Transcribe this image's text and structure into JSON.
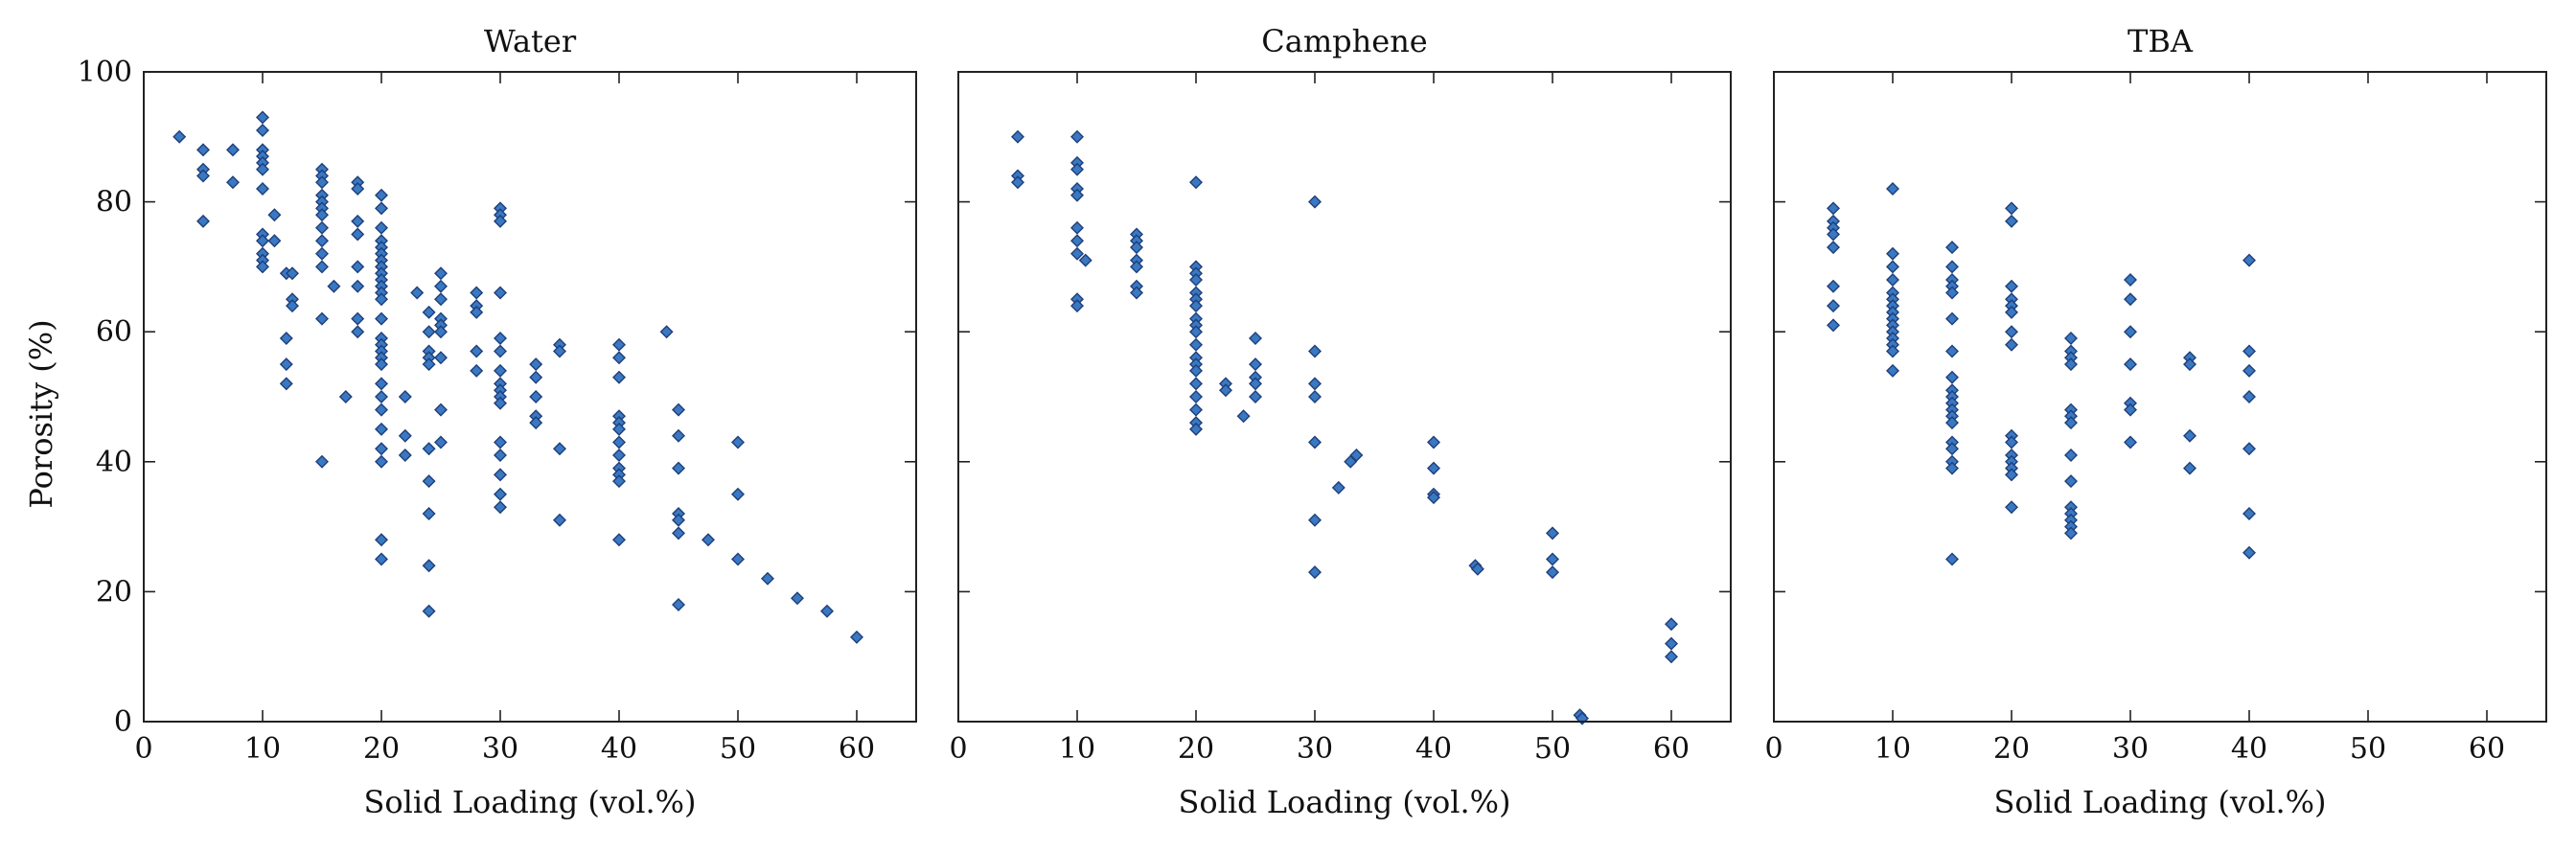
{
  "chart_data": {
    "type": "scatter",
    "ylabel": "Porosity (%)",
    "xlabel": "Solid Loading (vol.%)",
    "xlim": [
      0,
      65
    ],
    "ylim": [
      0,
      100
    ],
    "x_ticks": [
      0,
      10,
      20,
      30,
      40,
      50,
      60
    ],
    "y_ticks": [
      0,
      20,
      40,
      60,
      80,
      100
    ],
    "grid": false,
    "marker_color": "#3a78c2",
    "marker_edge_color": "#1e3f7a",
    "panels": [
      {
        "title": "Water",
        "points": [
          [
            3,
            90
          ],
          [
            5,
            88
          ],
          [
            5,
            85
          ],
          [
            5,
            84
          ],
          [
            5,
            77
          ],
          [
            7.5,
            88
          ],
          [
            7.5,
            83
          ],
          [
            10,
            93
          ],
          [
            10,
            91
          ],
          [
            10,
            88
          ],
          [
            10,
            87
          ],
          [
            10,
            86
          ],
          [
            10,
            85
          ],
          [
            10,
            82
          ],
          [
            10,
            75
          ],
          [
            10,
            74
          ],
          [
            10,
            72
          ],
          [
            10,
            71
          ],
          [
            10,
            70
          ],
          [
            11,
            78
          ],
          [
            11,
            74
          ],
          [
            12,
            69
          ],
          [
            12,
            59
          ],
          [
            12,
            55
          ],
          [
            12,
            52
          ],
          [
            12.5,
            69
          ],
          [
            12.5,
            65
          ],
          [
            12.5,
            64
          ],
          [
            15,
            85
          ],
          [
            15,
            84
          ],
          [
            15,
            83
          ],
          [
            15,
            81
          ],
          [
            15,
            80
          ],
          [
            15,
            79
          ],
          [
            15,
            78
          ],
          [
            15,
            76
          ],
          [
            15,
            74
          ],
          [
            15,
            72
          ],
          [
            15,
            70
          ],
          [
            15,
            62
          ],
          [
            15,
            40
          ],
          [
            16,
            67
          ],
          [
            17,
            50
          ],
          [
            18,
            83
          ],
          [
            18,
            82
          ],
          [
            18,
            77
          ],
          [
            18,
            75
          ],
          [
            18,
            70
          ],
          [
            18,
            67
          ],
          [
            18,
            62
          ],
          [
            18,
            60
          ],
          [
            20,
            81
          ],
          [
            20,
            79
          ],
          [
            20,
            76
          ],
          [
            20,
            74
          ],
          [
            20,
            73
          ],
          [
            20,
            72
          ],
          [
            20,
            71
          ],
          [
            20,
            70
          ],
          [
            20,
            69
          ],
          [
            20,
            68
          ],
          [
            20,
            67
          ],
          [
            20,
            66
          ],
          [
            20,
            65
          ],
          [
            20,
            62
          ],
          [
            20,
            59
          ],
          [
            20,
            58
          ],
          [
            20,
            57
          ],
          [
            20,
            56
          ],
          [
            20,
            55
          ],
          [
            20,
            52
          ],
          [
            20,
            50
          ],
          [
            20,
            48
          ],
          [
            20,
            45
          ],
          [
            20,
            42
          ],
          [
            20,
            40
          ],
          [
            20,
            28
          ],
          [
            20,
            25
          ],
          [
            22,
            50
          ],
          [
            22,
            44
          ],
          [
            22,
            41
          ],
          [
            23,
            66
          ],
          [
            24,
            63
          ],
          [
            24,
            60
          ],
          [
            24,
            57
          ],
          [
            24,
            56
          ],
          [
            24,
            55
          ],
          [
            24,
            42
          ],
          [
            24,
            37
          ],
          [
            24,
            32
          ],
          [
            24,
            24
          ],
          [
            24,
            17
          ],
          [
            25,
            69
          ],
          [
            25,
            67
          ],
          [
            25,
            65
          ],
          [
            25,
            62
          ],
          [
            25,
            61
          ],
          [
            25,
            60
          ],
          [
            25,
            56
          ],
          [
            25,
            48
          ],
          [
            25,
            43
          ],
          [
            28,
            66
          ],
          [
            28,
            64
          ],
          [
            28,
            63
          ],
          [
            28,
            57
          ],
          [
            28,
            54
          ],
          [
            30,
            79
          ],
          [
            30,
            78
          ],
          [
            30,
            77
          ],
          [
            30,
            66
          ],
          [
            30,
            59
          ],
          [
            30,
            57
          ],
          [
            30,
            54
          ],
          [
            30,
            52
          ],
          [
            30,
            51
          ],
          [
            30,
            50
          ],
          [
            30,
            49
          ],
          [
            30,
            43
          ],
          [
            30,
            41
          ],
          [
            30,
            38
          ],
          [
            30,
            35
          ],
          [
            30,
            33
          ],
          [
            33,
            55
          ],
          [
            33,
            53
          ],
          [
            33,
            50
          ],
          [
            33,
            47
          ],
          [
            33,
            46
          ],
          [
            35,
            58
          ],
          [
            35,
            57
          ],
          [
            35,
            42
          ],
          [
            35,
            31
          ],
          [
            40,
            58
          ],
          [
            40,
            56
          ],
          [
            40,
            53
          ],
          [
            40,
            47
          ],
          [
            40,
            46
          ],
          [
            40,
            45
          ],
          [
            40,
            43
          ],
          [
            40,
            41
          ],
          [
            40,
            39
          ],
          [
            40,
            38
          ],
          [
            40,
            37
          ],
          [
            40,
            28
          ],
          [
            44,
            60
          ],
          [
            45,
            48
          ],
          [
            45,
            44
          ],
          [
            45,
            39
          ],
          [
            45,
            32
          ],
          [
            45,
            31
          ],
          [
            45,
            29
          ],
          [
            45,
            18
          ],
          [
            47.5,
            28
          ],
          [
            50,
            43
          ],
          [
            50,
            35
          ],
          [
            50,
            25
          ],
          [
            52.5,
            22
          ],
          [
            55,
            19
          ],
          [
            57.5,
            17
          ],
          [
            60,
            13
          ]
        ]
      },
      {
        "title": "Camphene",
        "points": [
          [
            5,
            90
          ],
          [
            5,
            84
          ],
          [
            5,
            83
          ],
          [
            10,
            90
          ],
          [
            10,
            86
          ],
          [
            10,
            85
          ],
          [
            10,
            82
          ],
          [
            10,
            81
          ],
          [
            10,
            76
          ],
          [
            10,
            74
          ],
          [
            10,
            72
          ],
          [
            10,
            65
          ],
          [
            10,
            64
          ],
          [
            10.7,
            71
          ],
          [
            15,
            75
          ],
          [
            15,
            74
          ],
          [
            15,
            73
          ],
          [
            15,
            71
          ],
          [
            15,
            70
          ],
          [
            15,
            67
          ],
          [
            15,
            66
          ],
          [
            20,
            83
          ],
          [
            20,
            70
          ],
          [
            20,
            69
          ],
          [
            20,
            68
          ],
          [
            20,
            66
          ],
          [
            20,
            65
          ],
          [
            20,
            64
          ],
          [
            20,
            62
          ],
          [
            20,
            61
          ],
          [
            20,
            60
          ],
          [
            20,
            58
          ],
          [
            20,
            56
          ],
          [
            20,
            55
          ],
          [
            20,
            54
          ],
          [
            20,
            52
          ],
          [
            20,
            50
          ],
          [
            20,
            48
          ],
          [
            20,
            46
          ],
          [
            20,
            45
          ],
          [
            22.5,
            52
          ],
          [
            22.5,
            51
          ],
          [
            24,
            47
          ],
          [
            25,
            59
          ],
          [
            25,
            55
          ],
          [
            25,
            53
          ],
          [
            25,
            52
          ],
          [
            25,
            50
          ],
          [
            30,
            80
          ],
          [
            30,
            57
          ],
          [
            30,
            52
          ],
          [
            30,
            50
          ],
          [
            30,
            43
          ],
          [
            30,
            31
          ],
          [
            30,
            23
          ],
          [
            32,
            36
          ],
          [
            33,
            40
          ],
          [
            33.5,
            41
          ],
          [
            40,
            43
          ],
          [
            40,
            39
          ],
          [
            40,
            35
          ],
          [
            40,
            34.5
          ],
          [
            43.5,
            24
          ],
          [
            43.7,
            23.5
          ],
          [
            50,
            29
          ],
          [
            50,
            25
          ],
          [
            50,
            23
          ],
          [
            52.3,
            1
          ],
          [
            52.5,
            0.5
          ],
          [
            60,
            15
          ],
          [
            60,
            12
          ],
          [
            60,
            10
          ]
        ]
      },
      {
        "title": "TBA",
        "points": [
          [
            5,
            79
          ],
          [
            5,
            77
          ],
          [
            5,
            76
          ],
          [
            5,
            75
          ],
          [
            5,
            73
          ],
          [
            5,
            67
          ],
          [
            5,
            64
          ],
          [
            5,
            61
          ],
          [
            10,
            82
          ],
          [
            10,
            72
          ],
          [
            10,
            70
          ],
          [
            10,
            68
          ],
          [
            10,
            66
          ],
          [
            10,
            65
          ],
          [
            10,
            64
          ],
          [
            10,
            63
          ],
          [
            10,
            62
          ],
          [
            10,
            61
          ],
          [
            10,
            60
          ],
          [
            10,
            59
          ],
          [
            10,
            58
          ],
          [
            10,
            57
          ],
          [
            10,
            54
          ],
          [
            15,
            73
          ],
          [
            15,
            70
          ],
          [
            15,
            68
          ],
          [
            15,
            67
          ],
          [
            15,
            66
          ],
          [
            15,
            62
          ],
          [
            15,
            57
          ],
          [
            15,
            53
          ],
          [
            15,
            51
          ],
          [
            15,
            50
          ],
          [
            15,
            49
          ],
          [
            15,
            48
          ],
          [
            15,
            47
          ],
          [
            15,
            46
          ],
          [
            15,
            43
          ],
          [
            15,
            42
          ],
          [
            15,
            40
          ],
          [
            15,
            39
          ],
          [
            15,
            25
          ],
          [
            20,
            79
          ],
          [
            20,
            77
          ],
          [
            20,
            67
          ],
          [
            20,
            65
          ],
          [
            20,
            64
          ],
          [
            20,
            63
          ],
          [
            20,
            60
          ],
          [
            20,
            58
          ],
          [
            20,
            44
          ],
          [
            20,
            43
          ],
          [
            20,
            41
          ],
          [
            20,
            40
          ],
          [
            20,
            39
          ],
          [
            20,
            38
          ],
          [
            20,
            33
          ],
          [
            25,
            59
          ],
          [
            25,
            57
          ],
          [
            25,
            56
          ],
          [
            25,
            55
          ],
          [
            25,
            48
          ],
          [
            25,
            47
          ],
          [
            25,
            46
          ],
          [
            25,
            41
          ],
          [
            25,
            37
          ],
          [
            25,
            33
          ],
          [
            25,
            32
          ],
          [
            25,
            31
          ],
          [
            25,
            30
          ],
          [
            25,
            29
          ],
          [
            30,
            68
          ],
          [
            30,
            65
          ],
          [
            30,
            60
          ],
          [
            30,
            55
          ],
          [
            30,
            49
          ],
          [
            30,
            48
          ],
          [
            30,
            43
          ],
          [
            35,
            56
          ],
          [
            35,
            55
          ],
          [
            35,
            44
          ],
          [
            35,
            39
          ],
          [
            40,
            71
          ],
          [
            40,
            57
          ],
          [
            40,
            54
          ],
          [
            40,
            50
          ],
          [
            40,
            42
          ],
          [
            40,
            32
          ],
          [
            40,
            26
          ]
        ]
      }
    ]
  }
}
